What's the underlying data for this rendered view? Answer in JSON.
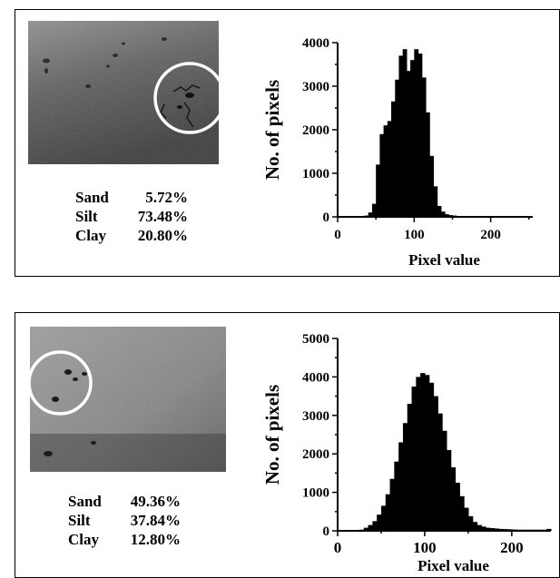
{
  "panels": [
    {
      "composition": [
        {
          "name": "Sand",
          "value": "5.72%"
        },
        {
          "name": "Silt",
          "value": "73.48%"
        },
        {
          "name": "Clay",
          "value": "20.80%"
        }
      ]
    },
    {
      "composition": [
        {
          "name": "Sand",
          "value": "49.36%"
        },
        {
          "name": "Silt",
          "value": "37.84%"
        },
        {
          "name": "Clay",
          "value": "12.80%"
        }
      ]
    }
  ],
  "chart_data": [
    {
      "type": "bar",
      "xlabel": "Pixel value",
      "ylabel": "No. of pixels",
      "xlim": [
        0,
        255
      ],
      "ylim": [
        0,
        4000
      ],
      "xticks": [
        0,
        100,
        200
      ],
      "yticks": [
        0,
        1000,
        2000,
        3000,
        4000
      ],
      "color": "#000000",
      "x_step": 5,
      "x_start": 0,
      "values": [
        0,
        0,
        0,
        0,
        0,
        0,
        10,
        30,
        100,
        300,
        1200,
        1900,
        2100,
        2200,
        2650,
        3150,
        3700,
        3850,
        3350,
        3600,
        3850,
        3750,
        3200,
        2400,
        1400,
        700,
        250,
        120,
        60,
        40,
        30,
        20,
        15,
        10,
        5,
        0,
        0,
        0,
        0,
        0,
        0,
        0,
        0,
        0,
        0,
        0,
        0,
        0,
        0,
        0,
        0,
        0
      ]
    },
    {
      "type": "bar",
      "xlabel": "Pixel value",
      "ylabel": "No. of pixels",
      "xlim": [
        0,
        245
      ],
      "ylim": [
        0,
        5000
      ],
      "xticks": [
        0,
        100,
        200
      ],
      "yticks": [
        0,
        1000,
        2000,
        3000,
        4000,
        5000
      ],
      "color": "#000000",
      "x_step": 5,
      "x_start": 0,
      "values": [
        0,
        0,
        0,
        0,
        10,
        30,
        80,
        150,
        250,
        420,
        650,
        950,
        1350,
        1800,
        2300,
        2800,
        3300,
        3750,
        4000,
        4100,
        4050,
        3850,
        3500,
        3050,
        2600,
        2100,
        1650,
        1250,
        900,
        600,
        380,
        230,
        150,
        110,
        80,
        70,
        60,
        50,
        45,
        40,
        35,
        30,
        30,
        30,
        30,
        30,
        30,
        30,
        50
      ]
    }
  ]
}
